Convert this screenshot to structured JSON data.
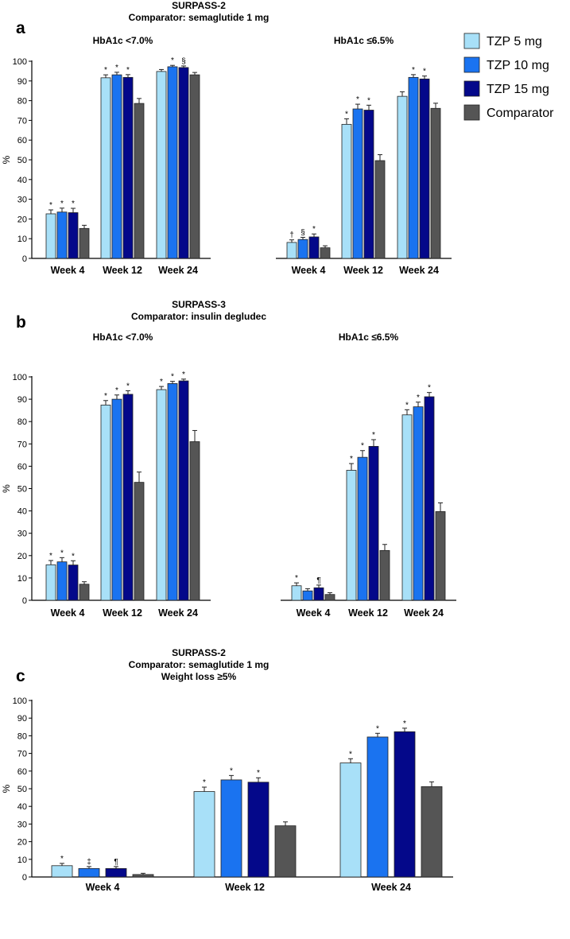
{
  "colors": {
    "TZP 5 mg": "#a8e0f8",
    "TZP 10 mg": "#1a73f0",
    "TZP 15 mg": "#04088a",
    "Comparator": "#555555"
  },
  "legend": {
    "entries": [
      "TZP 5 mg",
      "TZP 10 mg",
      "TZP 15 mg",
      "Comparator"
    ]
  },
  "chart_data": [
    {
      "type": "bar",
      "panel_label": "a",
      "title": [
        "SURPASS-2",
        "Comparator: semaglutide 1 mg"
      ],
      "ylabel": "%",
      "ylim": [
        0,
        100
      ],
      "yticks": [
        0,
        10,
        20,
        30,
        40,
        50,
        60,
        70,
        80,
        90,
        100
      ],
      "series_names": [
        "TZP 5 mg",
        "TZP 10 mg",
        "TZP 15 mg",
        "Comparator"
      ],
      "groups": [
        {
          "name": "HbA1c <7.0%",
          "categories": [
            {
              "label": "Week 4",
              "values": [
                22.6,
                23.5,
                23.2,
                15.2
              ],
              "errors": [
                2.0,
                2.0,
                2.2,
                1.6
              ],
              "sig": [
                "*",
                "*",
                "*",
                ""
              ]
            },
            {
              "label": "Week 12",
              "values": [
                91.6,
                93.1,
                91.8,
                78.6
              ],
              "errors": [
                1.5,
                1.3,
                1.4,
                2.5
              ],
              "sig": [
                "*",
                "*",
                "*",
                ""
              ]
            },
            {
              "label": "Week 24",
              "values": [
                94.8,
                97.2,
                96.8,
                93.1
              ],
              "errors": [
                1.0,
                0.7,
                0.8,
                1.2
              ],
              "sig": [
                "",
                "*",
                "§",
                ""
              ]
            }
          ]
        },
        {
          "name": "HbA1c ≤6.5%",
          "categories": [
            {
              "label": "Week 4",
              "values": [
                8.1,
                9.6,
                10.9,
                5.4
              ],
              "errors": [
                1.3,
                1.1,
                1.5,
                1.0
              ],
              "sig": [
                "†",
                "§",
                "*",
                ""
              ]
            },
            {
              "label": "Week 12",
              "values": [
                68.0,
                75.8,
                75.2,
                49.6
              ],
              "errors": [
                2.8,
                2.4,
                2.5,
                3.0
              ],
              "sig": [
                "*",
                "*",
                "*",
                ""
              ]
            },
            {
              "label": "Week 24",
              "values": [
                82.2,
                91.8,
                91.0,
                76.1
              ],
              "errors": [
                2.3,
                1.4,
                1.5,
                2.6
              ],
              "sig": [
                "",
                "*",
                "*",
                ""
              ]
            }
          ]
        }
      ]
    },
    {
      "type": "bar",
      "panel_label": "b",
      "title": [
        "SURPASS-3",
        "Comparator: insulin degludec"
      ],
      "ylabel": "%",
      "ylim": [
        0,
        100
      ],
      "yticks": [
        0,
        10,
        20,
        30,
        40,
        50,
        60,
        70,
        80,
        90,
        100
      ],
      "series_names": [
        "TZP 5 mg",
        "TZP 10 mg",
        "TZP 15 mg",
        "Comparator"
      ],
      "groups": [
        {
          "name": "HbA1c <7.0%",
          "categories": [
            {
              "label": "Week 4",
              "values": [
                15.9,
                17.2,
                15.8,
                7.2
              ],
              "errors": [
                1.9,
                1.9,
                1.9,
                1.1
              ],
              "sig": [
                "*",
                "*",
                "*",
                ""
              ]
            },
            {
              "label": "Week 12",
              "values": [
                87.4,
                90.0,
                92.2,
                52.8
              ],
              "errors": [
                2.0,
                1.9,
                1.6,
                4.6
              ],
              "sig": [
                "*",
                "*",
                "*",
                ""
              ]
            },
            {
              "label": "Week 24",
              "values": [
                94.3,
                97.0,
                98.2,
                71.0
              ],
              "errors": [
                1.4,
                1.0,
                0.8,
                5.0
              ],
              "sig": [
                "*",
                "*",
                "*",
                ""
              ]
            }
          ]
        },
        {
          "name": "HbA1c ≤6.5%",
          "categories": [
            {
              "label": "Week 4",
              "values": [
                6.5,
                4.2,
                5.6,
                2.6
              ],
              "errors": [
                1.3,
                1.0,
                1.2,
                0.8
              ],
              "sig": [
                "*",
                "",
                "¶",
                ""
              ]
            },
            {
              "label": "Week 12",
              "values": [
                58.2,
                64.0,
                68.9,
                22.3
              ],
              "errors": [
                3.0,
                3.0,
                3.0,
                2.7
              ],
              "sig": [
                "*",
                "*",
                "*",
                ""
              ]
            },
            {
              "label": "Week 24",
              "values": [
                83.0,
                86.6,
                91.1,
                39.7
              ],
              "errors": [
                2.3,
                2.1,
                1.9,
                3.9
              ],
              "sig": [
                "*",
                "*",
                "*",
                ""
              ]
            }
          ]
        }
      ]
    },
    {
      "type": "bar",
      "panel_label": "c",
      "title": [
        "SURPASS-2",
        "Comparator: semaglutide 1 mg",
        "Weight loss ≥5%"
      ],
      "ylabel": "%",
      "ylim": [
        0,
        100
      ],
      "yticks": [
        0,
        10,
        20,
        30,
        40,
        50,
        60,
        70,
        80,
        90,
        100
      ],
      "series_names": [
        "TZP 5 mg",
        "TZP 10 mg",
        "TZP 15 mg",
        "Comparator"
      ],
      "groups": [
        {
          "name": "",
          "categories": [
            {
              "label": "Week 4",
              "values": [
                6.4,
                4.8,
                4.8,
                1.4
              ],
              "errors": [
                1.3,
                1.1,
                1.1,
                0.7
              ],
              "sig": [
                "*",
                "‡",
                "¶",
                ""
              ]
            },
            {
              "label": "Week 12",
              "values": [
                48.4,
                55.0,
                53.7,
                29.0
              ],
              "errors": [
                2.5,
                2.5,
                2.5,
                2.2
              ],
              "sig": [
                "*",
                "*",
                "*",
                ""
              ]
            },
            {
              "label": "Week 24",
              "values": [
                64.6,
                79.3,
                82.3,
                51.2
              ],
              "errors": [
                2.4,
                2.1,
                2.0,
                2.7
              ],
              "sig": [
                "*",
                "*",
                "*",
                ""
              ]
            }
          ]
        }
      ]
    }
  ]
}
